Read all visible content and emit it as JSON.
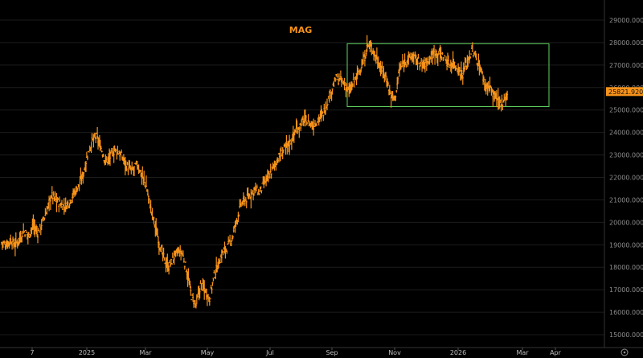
{
  "chart_data": {
    "type": "line",
    "title": "MAG",
    "xlabel": "",
    "ylabel": "",
    "ylim": [
      14500,
      29500
    ],
    "y_ticks": [
      "15000.0000",
      "16000.0000",
      "17000.0000",
      "18000.0000",
      "19000.0000",
      "20000.0000",
      "21000.0000",
      "22000.0000",
      "23000.0000",
      "24000.0000",
      "25000.0000",
      "26000.0000",
      "27000.0000",
      "28000.0000",
      "29000.0000"
    ],
    "x_ticks": [
      "7",
      "2025",
      "Mar",
      "May",
      "Jul",
      "Sep",
      "Nov",
      "2026",
      "Mar",
      "Apr"
    ],
    "last_price": "25821.9200",
    "series_color": "#f7931a",
    "highlight_box": {
      "color": "#5fd35f",
      "x_start": "Sep",
      "x_end": "Apr",
      "y_range": [
        25150,
        27950
      ]
    },
    "grid": false,
    "series": [
      {
        "values": [
          19100,
          19000,
          19200,
          19000,
          19300,
          19600,
          19400,
          19900,
          19500,
          20000,
          20500,
          21200,
          21000,
          20800,
          20700,
          20900,
          21300,
          21600,
          22100,
          23000,
          23600,
          23800,
          23300,
          22700,
          22900,
          23200,
          23100,
          22800,
          22400,
          22300,
          22600,
          22100,
          21600,
          20600,
          19800,
          19000,
          18300,
          18000,
          18400,
          18700,
          18600,
          17800,
          16700,
          16300,
          17200,
          17000,
          16600,
          17600,
          18200,
          18700,
          18900,
          19300,
          20100,
          20800,
          21000,
          21200,
          21500,
          21300,
          21700,
          22000,
          22400,
          22800,
          23100,
          23400,
          23600,
          24100,
          24300,
          24600,
          24400,
          24300,
          24600,
          24800,
          25300,
          25900,
          26400,
          26300,
          26100,
          25800,
          26300,
          26700,
          27100,
          27900,
          27700,
          27300,
          26800,
          26500,
          25700,
          25500,
          26800,
          27100,
          27300,
          27400,
          27200,
          27000,
          27100,
          27400,
          27600,
          27500,
          27300,
          27000,
          27100,
          26800,
          26600,
          27200,
          27600,
          27300,
          26800,
          26100,
          26000,
          25600,
          25300,
          25400,
          25821.92
        ]
      }
    ]
  }
}
